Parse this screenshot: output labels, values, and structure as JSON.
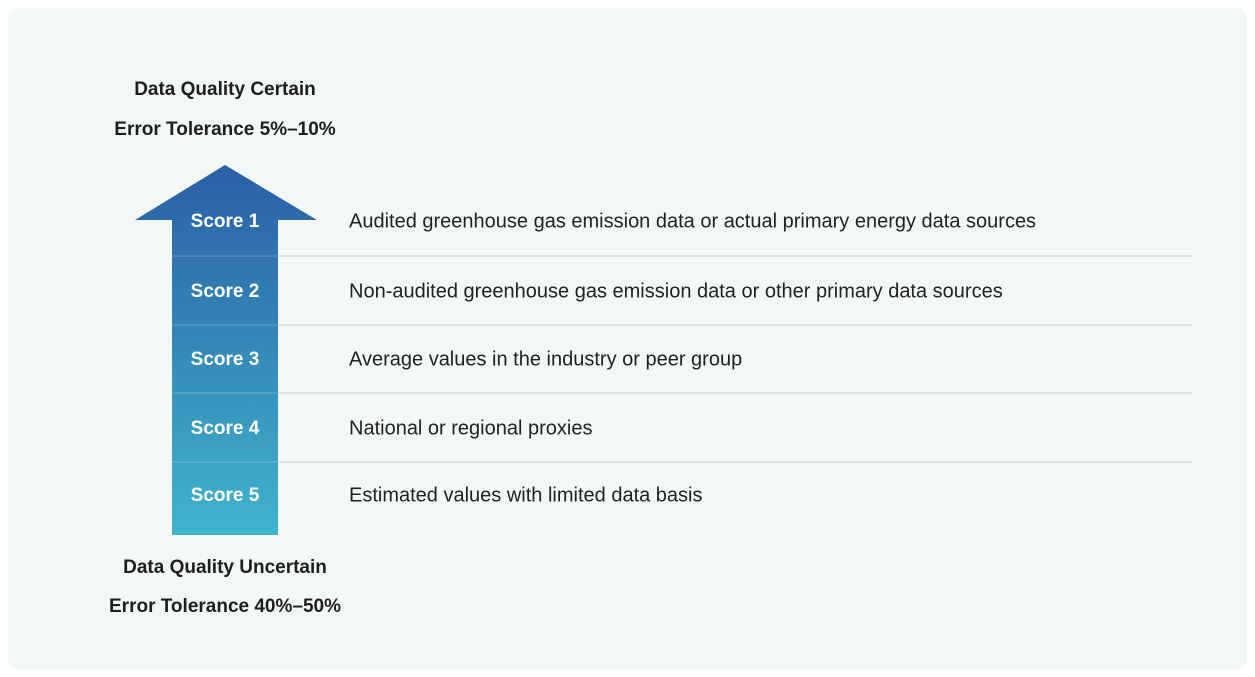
{
  "top_label": {
    "line1": "Data Quality Certain",
    "line2": "Error Tolerance 5%–10%"
  },
  "bottom_label": {
    "line1": "Data Quality Uncertain",
    "line2": "Error Tolerance 40%–50%"
  },
  "scores": [
    {
      "label": "Score 1",
      "description": "Audited greenhouse gas emission data or actual primary energy data sources"
    },
    {
      "label": "Score 2",
      "description": "Non-audited greenhouse gas emission data or other primary data sources"
    },
    {
      "label": "Score 3",
      "description": "Average values in the industry or peer group"
    },
    {
      "label": "Score 4",
      "description": "National or regional proxies"
    },
    {
      "label": "Score 5",
      "description": "Estimated values with limited data basis"
    }
  ]
}
